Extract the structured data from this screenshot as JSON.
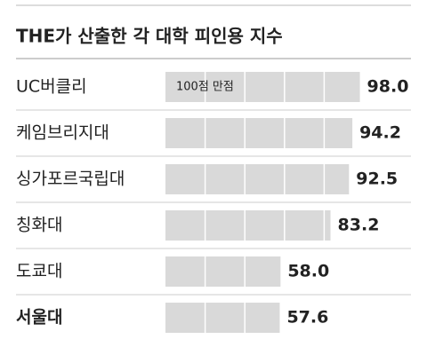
{
  "chart_data": {
    "type": "hbar",
    "title": "THE가 산출한 각 대학 피인용 지수",
    "annotation": "100점 만점",
    "categories": [
      "UC버클리",
      "케임브리지대",
      "싱가포르국립대",
      "칭화대",
      "도쿄대",
      "서울대"
    ],
    "values": [
      98.0,
      94.2,
      92.5,
      83.2,
      58.0,
      57.6
    ],
    "value_labels": [
      "98.0",
      "94.2",
      "92.5",
      "83.2",
      "58.0",
      "57.6"
    ],
    "color": "#d9d9d9",
    "grid_color": "#ffffff",
    "xlim": [
      0,
      100
    ],
    "xgrid": [
      20,
      40,
      60,
      80
    ],
    "bold_index": 5
  }
}
